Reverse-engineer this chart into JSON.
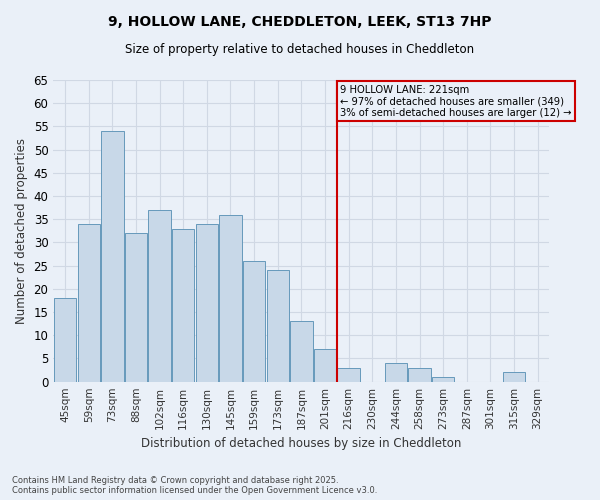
{
  "title1": "9, HOLLOW LANE, CHEDDLETON, LEEK, ST13 7HP",
  "title2": "Size of property relative to detached houses in Cheddleton",
  "xlabel": "Distribution of detached houses by size in Cheddleton",
  "ylabel": "Number of detached properties",
  "footer": "Contains HM Land Registry data © Crown copyright and database right 2025.\nContains public sector information licensed under the Open Government Licence v3.0.",
  "categories": [
    "45sqm",
    "59sqm",
    "73sqm",
    "88sqm",
    "102sqm",
    "116sqm",
    "130sqm",
    "145sqm",
    "159sqm",
    "173sqm",
    "187sqm",
    "201sqm",
    "216sqm",
    "230sqm",
    "244sqm",
    "258sqm",
    "273sqm",
    "287sqm",
    "301sqm",
    "315sqm",
    "329sqm"
  ],
  "values": [
    18,
    34,
    54,
    32,
    37,
    33,
    34,
    36,
    26,
    24,
    13,
    7,
    3,
    0,
    4,
    3,
    1,
    0,
    0,
    2,
    0
  ],
  "bar_color": "#c8d8e8",
  "bar_edge_color": "#6699bb",
  "grid_color": "#d0d8e4",
  "bg_color": "#eaf0f8",
  "vline_color": "#cc0000",
  "annotation_text": "9 HOLLOW LANE: 221sqm\n← 97% of detached houses are smaller (349)\n3% of semi-detached houses are larger (12) →",
  "annotation_box_color": "#cc0000",
  "ylim": [
    0,
    65
  ],
  "yticks": [
    0,
    5,
    10,
    15,
    20,
    25,
    30,
    35,
    40,
    45,
    50,
    55,
    60,
    65
  ],
  "vline_index": 12
}
